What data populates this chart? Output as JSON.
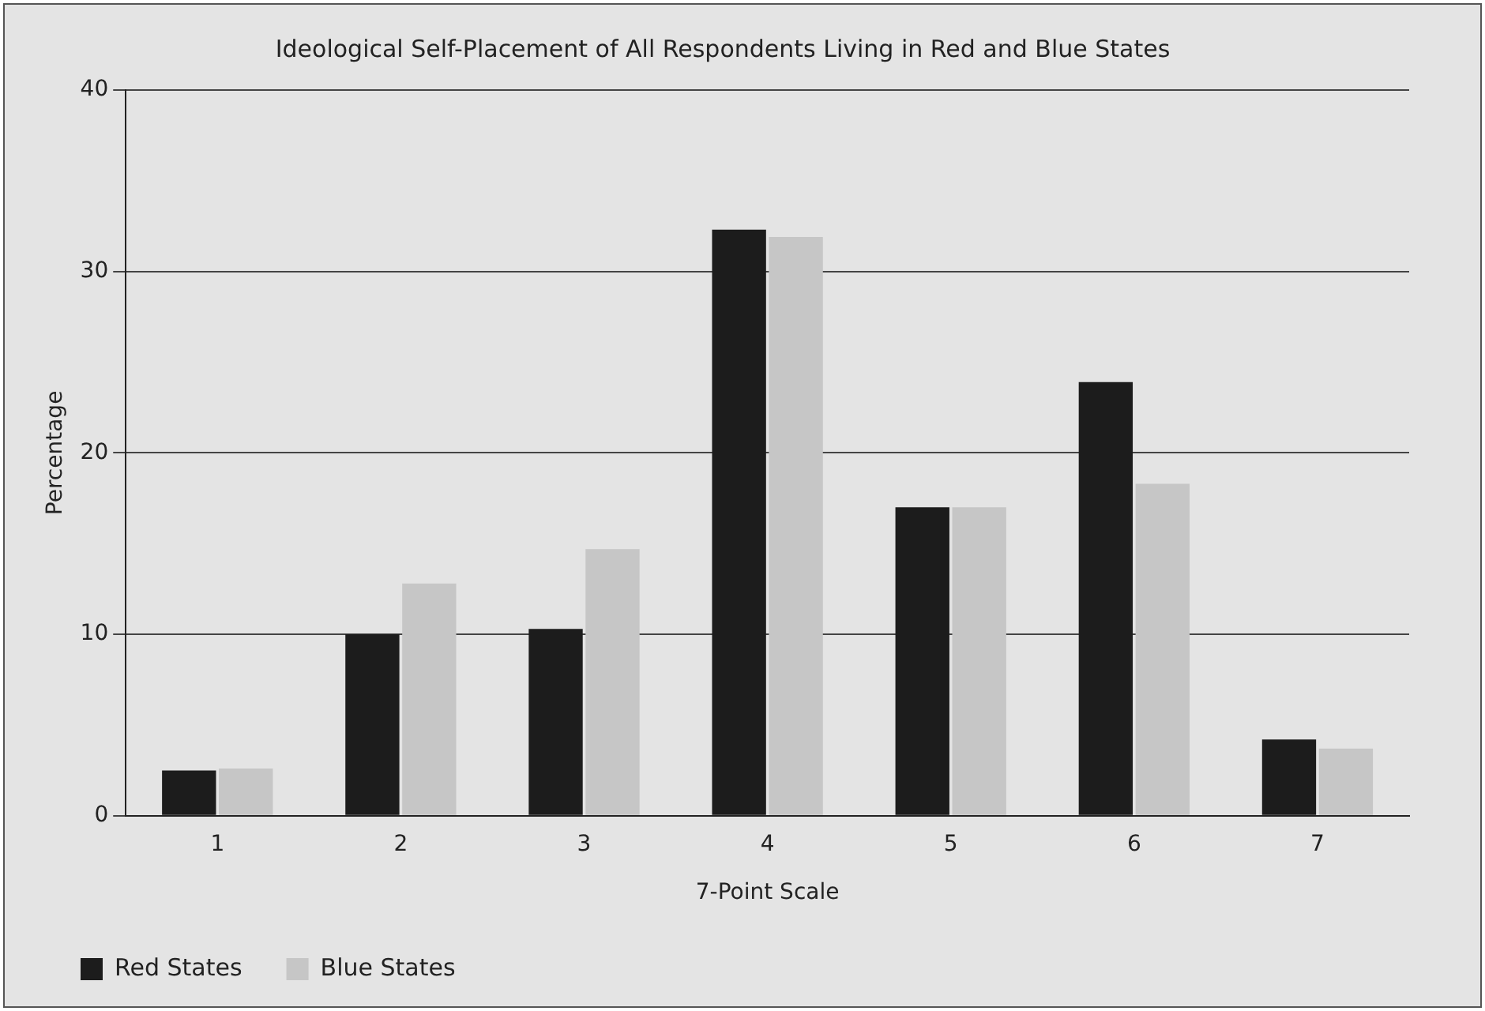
{
  "chart_data": {
    "type": "bar",
    "title": "Ideological Self-Placement of All Respondents Living in Red and Blue States",
    "xlabel": "7-Point Scale",
    "ylabel": "Percentage",
    "categories": [
      "1",
      "2",
      "3",
      "4",
      "5",
      "6",
      "7"
    ],
    "series": [
      {
        "name": "Red States",
        "color": "#1c1c1c",
        "values": [
          2.5,
          10.0,
          10.3,
          32.3,
          17.0,
          23.9,
          4.2
        ]
      },
      {
        "name": "Blue States",
        "color": "#c6c6c6",
        "values": [
          2.6,
          12.8,
          14.7,
          31.9,
          17.0,
          18.3,
          3.7
        ]
      }
    ],
    "ylim": [
      0,
      40
    ],
    "yticks": [
      0,
      10,
      20,
      30,
      40
    ],
    "grid": "y",
    "legend": "bottom left"
  }
}
